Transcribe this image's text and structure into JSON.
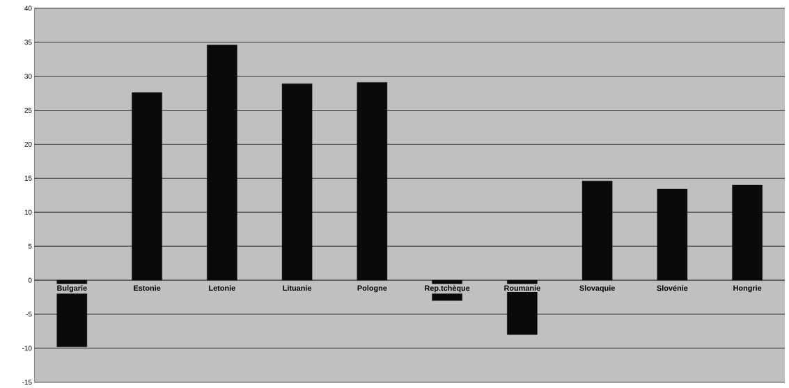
{
  "chart_data": {
    "type": "bar",
    "categories": [
      "Bulgarie",
      "Estonie",
      "Letonie",
      "Lituanie",
      "Pologne",
      "Rep.tchèque",
      "Roumanie",
      "Slovaquie",
      "Slovénie",
      "Hongrie"
    ],
    "values": [
      -9.8,
      27.6,
      34.6,
      28.9,
      29.1,
      -3.0,
      -8.0,
      14.6,
      13.4,
      14.0
    ],
    "color": "#0a0a0a",
    "ylim": [
      -15,
      40
    ],
    "yticks": [
      -15,
      -10,
      -5,
      0,
      5,
      10,
      15,
      20,
      25,
      30,
      35,
      40
    ],
    "grid": "y"
  }
}
